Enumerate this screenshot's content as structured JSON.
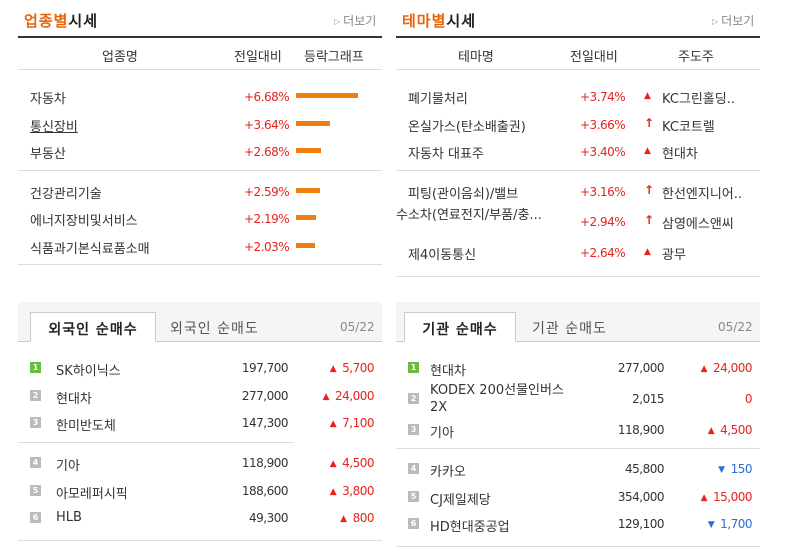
{
  "industry": {
    "title_accent": "업종별",
    "title_rest": "시세",
    "more": "더보기",
    "columns": [
      "업종명",
      "전일대비",
      "등락그래프"
    ],
    "rows": [
      {
        "name": "자동차",
        "change": "+6.68%",
        "level": 6.68
      },
      {
        "name": "통신장비",
        "change": "+3.64%",
        "level": 3.64
      },
      {
        "name": "부동산",
        "change": "+2.68%",
        "level": 2.68
      },
      {
        "name": "건강관리기술",
        "change": "+2.59%",
        "level": 2.59
      },
      {
        "name": "에너지장비및서비스",
        "change": "+2.19%",
        "level": 2.19
      },
      {
        "name": "식품과기본식료품소매",
        "change": "+2.03%",
        "level": 2.03
      }
    ]
  },
  "theme": {
    "title_accent": "테마별",
    "title_rest": "시세",
    "more": "더보기",
    "columns": [
      "테마명",
      "전일대비",
      "주도주"
    ],
    "rows": [
      {
        "name": "폐기물처리",
        "change": "+3.74%",
        "arrow": "▲",
        "leader": "KC그린홀딩.."
      },
      {
        "name": "온실가스(탄소배출권)",
        "change": "+3.66%",
        "arrow": "↑",
        "leader": "KC코트렐"
      },
      {
        "name": "자동차 대표주",
        "change": "+3.40%",
        "arrow": "▲",
        "leader": "현대차"
      },
      {
        "name": "피팅(관이음쇠)/밸브",
        "change": "+3.16%",
        "arrow": "↑",
        "leader": "한선엔지니어.."
      },
      {
        "name": "수소차(연료전지/부품/충...",
        "change": "+2.94%",
        "arrow": "↑",
        "leader": "삼영에스앤씨"
      },
      {
        "name": "제4이동통신",
        "change": "+2.64%",
        "arrow": "▲",
        "leader": "광무"
      }
    ]
  },
  "foreign": {
    "tab_active": "외국인 순매수",
    "tab_other": "외국인 순매도",
    "date": "05/22",
    "rows": [
      {
        "rank": "1",
        "name": "SK하이닉스",
        "price": "197,700",
        "change": "5,700",
        "dir": "up"
      },
      {
        "rank": "2",
        "name": "현대차",
        "price": "277,000",
        "change": "24,000",
        "dir": "up"
      },
      {
        "rank": "3",
        "name": "한미반도체",
        "price": "147,300",
        "change": "7,100",
        "dir": "up"
      },
      {
        "rank": "4",
        "name": "기아",
        "price": "118,900",
        "change": "4,500",
        "dir": "up"
      },
      {
        "rank": "5",
        "name": "아모레퍼시픽",
        "price": "188,600",
        "change": "3,800",
        "dir": "up"
      },
      {
        "rank": "6",
        "name": "HLB",
        "price": "49,300",
        "change": "800",
        "dir": "up"
      }
    ]
  },
  "institution": {
    "tab_active": "기관 순매수",
    "tab_other": "기관 순매도",
    "date": "05/22",
    "rows": [
      {
        "rank": "1",
        "name": "현대차",
        "price": "277,000",
        "change": "24,000",
        "dir": "up"
      },
      {
        "rank": "2",
        "name": "KODEX 200선물인버스 2X",
        "price": "2,015",
        "change": "0",
        "dir": "up"
      },
      {
        "rank": "3",
        "name": "기아",
        "price": "118,900",
        "change": "4,500",
        "dir": "up"
      },
      {
        "rank": "4",
        "name": "카카오",
        "price": "45,800",
        "change": "150",
        "dir": "down"
      },
      {
        "rank": "5",
        "name": "CJ제일제당",
        "price": "354,000",
        "change": "15,000",
        "dir": "up"
      },
      {
        "rank": "6",
        "name": "HD현대중공업",
        "price": "129,100",
        "change": "1,700",
        "dir": "down"
      }
    ]
  },
  "colors": {
    "accent": "#e8630a",
    "up": "#e8221e",
    "down": "#2a6fd6",
    "bar": "#f07d12",
    "rank_top": "#6cba3e"
  }
}
